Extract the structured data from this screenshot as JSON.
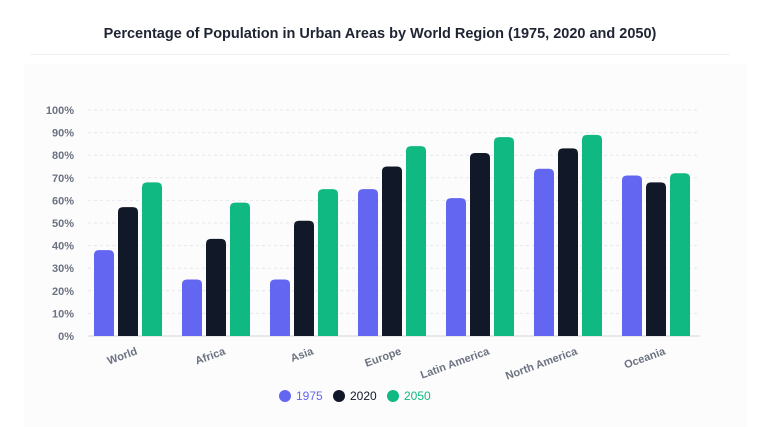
{
  "chart_data": {
    "type": "bar",
    "title": "Percentage of Population in Urban Areas by World Region (1975, 2020 and 2050)",
    "xlabel": "",
    "ylabel": "",
    "categories": [
      "World",
      "Africa",
      "Asia",
      "Europe",
      "Latin America",
      "North America",
      "Oceania"
    ],
    "series": [
      {
        "name": "1975",
        "color": "#6366f1",
        "values": [
          38,
          25,
          25,
          65,
          61,
          74,
          71
        ]
      },
      {
        "name": "2020",
        "color": "#111827",
        "values": [
          57,
          43,
          51,
          75,
          81,
          83,
          68
        ]
      },
      {
        "name": "2050",
        "color": "#10b981",
        "values": [
          68,
          59,
          65,
          84,
          88,
          89,
          72
        ]
      }
    ],
    "ylim": [
      0,
      100
    ],
    "yticks": [
      "0%",
      "10%",
      "20%",
      "30%",
      "40%",
      "50%",
      "60%",
      "70%",
      "80%",
      "90%",
      "100%"
    ],
    "grid": true,
    "legend_position": "bottom"
  }
}
